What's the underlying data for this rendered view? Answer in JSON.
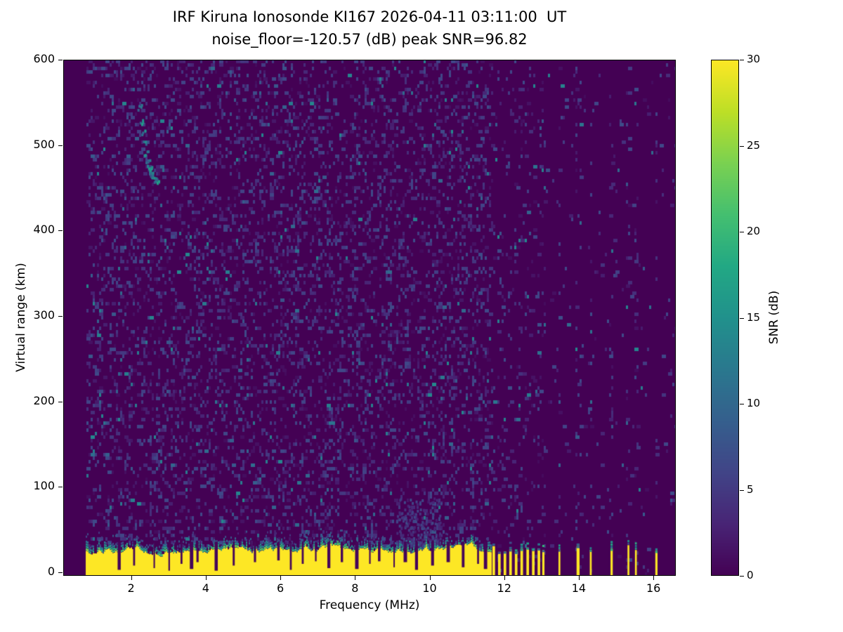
{
  "figure": {
    "title_line1": "IRF Kiruna Ionosonde KI167 2026-04-11 03:11:00  UT",
    "title_line2": "noise_floor=-120.57 (dB) peak SNR=96.82",
    "xlabel": "Frequency (MHz)",
    "ylabel": "Virtual range (km)",
    "colorbar_label": "SNR (dB)"
  },
  "chart_data": {
    "type": "heatmap",
    "title": "IRF Kiruna Ionosonde KI167 2026-04-11 03:11:00  UT",
    "subtitle": "noise_floor=-120.57 (dB) peak SNR=96.82",
    "station": "IRF Kiruna Ionosonde KI167",
    "timestamp_ut": "2026-04-11 03:11:00",
    "noise_floor_db": -120.57,
    "peak_snr_db": 96.82,
    "xlabel": "Frequency (MHz)",
    "ylabel": "Virtual range (km)",
    "xlim": [
      0.18,
      16.6
    ],
    "ylim": [
      -4,
      600
    ],
    "xticks": [
      2,
      4,
      6,
      8,
      10,
      12,
      14,
      16
    ],
    "yticks": [
      0,
      100,
      200,
      300,
      400,
      500,
      600
    ],
    "colormap": "viridis",
    "colorbar": {
      "label": "SNR (dB)",
      "min": 0,
      "max": 30,
      "ticks": [
        0,
        5,
        10,
        15,
        20,
        25,
        30
      ]
    },
    "background_color": "#440154",
    "peak_color": "#fde725",
    "sweep_start_mhz": 0.8,
    "noise_speckle": {
      "density_below_11_65MHz": 0.2,
      "density_above_11_65MHz": 0.02,
      "column_density_at_rfi_bars": 0.1,
      "typical_snr_db": [
        1,
        8
      ]
    },
    "ground_clutter": {
      "freq_start": 0.8,
      "freq_end": 11.65,
      "solid_top_km": 26,
      "fringe_km": 12,
      "snr_db": 30,
      "notches_freq_depthkm": [
        [
          1.68,
          3
        ],
        [
          2.08,
          8
        ],
        [
          2.62,
          5
        ],
        [
          3.02,
          2
        ],
        [
          3.35,
          10
        ],
        [
          3.62,
          4
        ],
        [
          3.78,
          12
        ],
        [
          4.28,
          2
        ],
        [
          4.75,
          8
        ],
        [
          5.32,
          12
        ],
        [
          5.95,
          14
        ],
        [
          6.28,
          3
        ],
        [
          6.6,
          10
        ],
        [
          6.95,
          13
        ],
        [
          7.3,
          5
        ],
        [
          7.65,
          12
        ],
        [
          8.05,
          4
        ],
        [
          8.4,
          10
        ],
        [
          8.65,
          13
        ],
        [
          9.05,
          6
        ],
        [
          9.35,
          12
        ],
        [
          9.65,
          3
        ],
        [
          10.08,
          8
        ],
        [
          10.5,
          12
        ],
        [
          10.9,
          6
        ],
        [
          11.3,
          10
        ],
        [
          11.5,
          4
        ]
      ]
    },
    "rfi_bars_mhz": [
      {
        "f": 11.72,
        "w": 0.07
      },
      {
        "f": 11.87,
        "w": 0.07
      },
      {
        "f": 12.02,
        "w": 0.07
      },
      {
        "f": 12.17,
        "w": 0.07
      },
      {
        "f": 12.32,
        "w": 0.07
      },
      {
        "f": 12.47,
        "w": 0.07
      },
      {
        "f": 12.63,
        "w": 0.07
      },
      {
        "f": 12.78,
        "w": 0.07
      },
      {
        "f": 12.93,
        "w": 0.07
      },
      {
        "f": 13.05,
        "w": 0.06
      },
      {
        "f": 13.48,
        "w": 0.05
      },
      {
        "f": 13.98,
        "w": 0.08
      },
      {
        "f": 14.32,
        "w": 0.05
      },
      {
        "f": 14.88,
        "w": 0.06
      },
      {
        "f": 15.33,
        "w": 0.05
      },
      {
        "f": 15.53,
        "w": 0.05
      },
      {
        "f": 16.08,
        "w": 0.06
      }
    ],
    "echo_trace": {
      "snr_db": 14,
      "points_mhz_km": [
        [
          2.22,
          545
        ],
        [
          2.28,
          528
        ],
        [
          2.32,
          515
        ],
        [
          2.36,
          505
        ],
        [
          2.4,
          492
        ],
        [
          2.44,
          483
        ],
        [
          2.47,
          476
        ],
        [
          2.5,
          471
        ],
        [
          2.53,
          468
        ],
        [
          2.57,
          464
        ],
        [
          2.62,
          460
        ],
        [
          2.68,
          457
        ],
        [
          2.48,
          470
        ],
        [
          2.52,
          474
        ],
        [
          2.56,
          468
        ]
      ]
    },
    "diffuse_plume": {
      "freq_center_mhz": 9.7,
      "freq_halfwidth_mhz": 0.6,
      "top_km": 88
    }
  }
}
